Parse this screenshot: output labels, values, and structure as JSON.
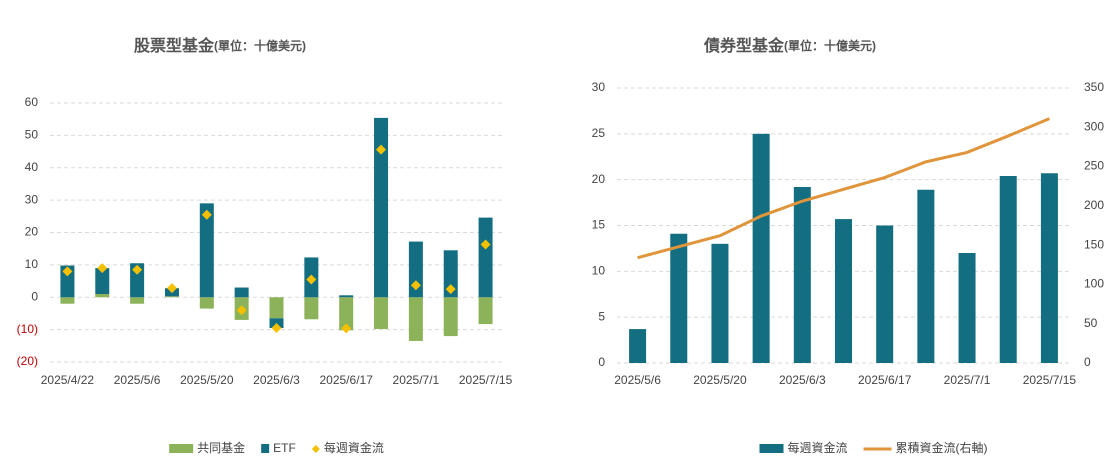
{
  "chart_data": [
    {
      "type": "bar",
      "title": "股票型基金",
      "subtitle": "(單位：十億美元)",
      "categories": [
        "2025/4/22",
        null,
        "2025/5/6",
        null,
        "2025/5/20",
        null,
        "2025/6/3",
        null,
        "2025/6/17",
        null,
        "2025/7/1",
        null,
        "2025/7/15"
      ],
      "stacked": true,
      "grid": true,
      "legend": "bottom",
      "ylim": [
        -20,
        60
      ],
      "yticks": [
        {
          "value": -20,
          "label": "(20)"
        },
        {
          "value": -10,
          "label": "(10)"
        },
        0,
        10,
        20,
        30,
        40,
        50,
        60
      ],
      "series": [
        {
          "name": "共同基金",
          "color": "#8db35a",
          "values": [
            -2,
            1,
            -2,
            0.3,
            -3.5,
            -7,
            -6.5,
            -6.8,
            -10.2,
            -9.8,
            -13.5,
            -12,
            -8.3
          ]
        },
        {
          "name": "ETF",
          "color": "#136e82",
          "values": [
            9.8,
            8,
            10.5,
            2.5,
            29,
            3,
            -3,
            12.3,
            0.6,
            55.4,
            17.2,
            14.5,
            24.6
          ]
        },
        {
          "name": "每週資金流",
          "type": "scatter",
          "color": "#f5c000",
          "values": [
            8,
            9,
            8.5,
            2.8,
            25.5,
            -4,
            -9.5,
            5.5,
            -9.6,
            45.6,
            3.7,
            2.5,
            16.3
          ]
        }
      ]
    },
    {
      "type": "bar",
      "title": "債券型基金",
      "subtitle": "(單位：十億美元)",
      "categories": [
        "2025/5/6",
        null,
        "2025/5/20",
        null,
        "2025/6/3",
        null,
        "2025/6/17",
        null,
        "2025/7/1",
        null,
        "2025/7/15"
      ],
      "grid": true,
      "legend": "bottom",
      "ylim": [
        0,
        30
      ],
      "yticks": [
        0,
        5,
        10,
        15,
        20,
        25,
        30
      ],
      "y2lim": [
        0,
        350
      ],
      "y2ticks": [
        0,
        50,
        100,
        150,
        200,
        250,
        300,
        350
      ],
      "series": [
        {
          "name": "每週資金流",
          "color": "#136e82",
          "values": [
            3.7,
            14.1,
            13.0,
            25.0,
            19.2,
            15.7,
            15.0,
            18.9,
            12.0,
            20.4,
            20.7
          ]
        },
        {
          "name": "累積資金流(右軸)",
          "type": "line",
          "axis": "y2",
          "color": "#e0953a",
          "values": [
            134,
            148,
            162,
            187,
            206,
            221,
            236,
            256,
            268,
            289,
            311
          ]
        }
      ]
    }
  ]
}
